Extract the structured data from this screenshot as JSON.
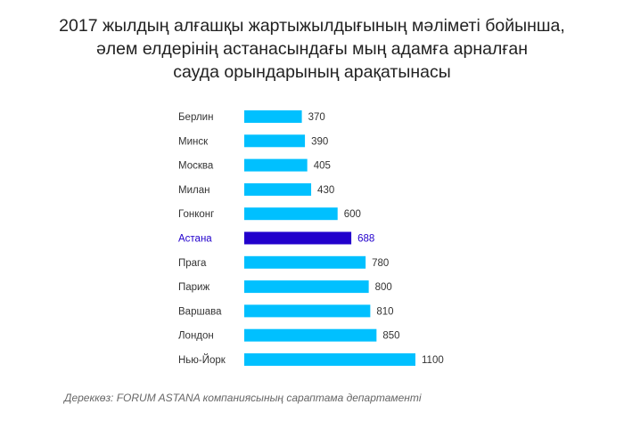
{
  "title": {
    "line1": "2017 жылдың алғашқы жартыжылдығының мәліметі бойынша,",
    "line2": "әлем елдерінің астанасындағы мың адамға арналған",
    "line3": "сауда орындарының арақатынасы"
  },
  "source": "Дереккөз: FORUM ASTANA компаниясының сараптама департаменті",
  "colors": {
    "bar": "#00c0ff",
    "highlight": "#2200cc",
    "text": "#333333"
  },
  "chart_data": {
    "type": "bar",
    "orientation": "horizontal",
    "title": "2017 жылдың алғашқы жартыжылдығының мәліметі бойынша, әлем елдерінің астанасындағы мың адамға арналған сауда орындарының арақатынасы",
    "categories": [
      "Берлин",
      "Минск",
      "Москва",
      "Милан",
      "Гонконг",
      "Астана",
      "Прага",
      "Париж",
      "Варшава",
      "Лондон",
      "Нью-Йорк"
    ],
    "values": [
      370,
      390,
      405,
      430,
      600,
      688,
      780,
      800,
      810,
      850,
      1100
    ],
    "highlight_category": "Астана",
    "xlim": [
      0,
      1100
    ],
    "grid": false
  }
}
